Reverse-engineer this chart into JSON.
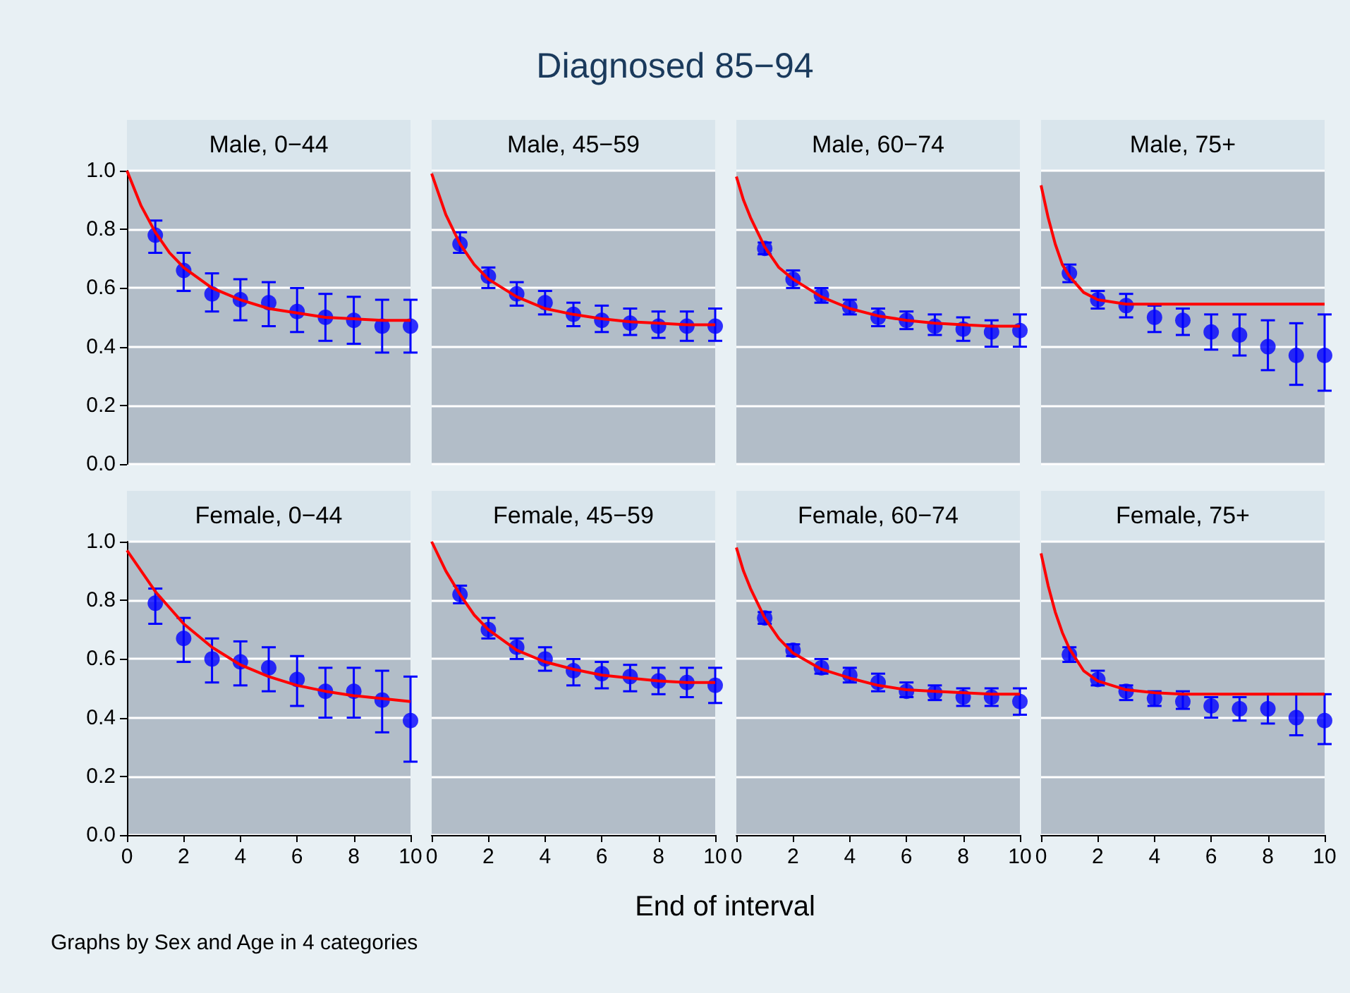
{
  "chart_data": [
    {
      "type": "other",
      "title": "Diagnosed 85−94"
    },
    {
      "type": "scatter",
      "title": "Male, 0−44",
      "xlim": [
        0,
        10
      ],
      "ylim": [
        0,
        1
      ],
      "xticks": [
        0,
        2,
        4,
        6,
        8,
        10
      ],
      "yticks": [
        {
          "value": 0,
          "label": "0.0"
        },
        {
          "value": 0.2,
          "label": "0.2"
        },
        {
          "value": 0.4,
          "label": "0.4"
        },
        {
          "value": 0.6,
          "label": "0.6"
        },
        {
          "value": 0.8,
          "label": "0.8"
        },
        {
          "value": 1,
          "label": "1.0"
        }
      ],
      "grid": "y",
      "tick_labels": "y",
      "series": [
        {
          "type": "scatter",
          "marker": "circle",
          "color": "#0000ff",
          "x": [
            1,
            2,
            3,
            4,
            5,
            6,
            7,
            8,
            9,
            10
          ],
          "values": [
            0.78,
            0.66,
            0.58,
            0.56,
            0.55,
            0.52,
            0.5,
            0.49,
            0.47,
            0.47
          ],
          "errors": [
            [
              0.72,
              0.83
            ],
            [
              0.59,
              0.72
            ],
            [
              0.52,
              0.65
            ],
            [
              0.49,
              0.63
            ],
            [
              0.47,
              0.62
            ],
            [
              0.45,
              0.6
            ],
            [
              0.42,
              0.58
            ],
            [
              0.41,
              0.57
            ],
            [
              0.38,
              0.56
            ],
            [
              0.38,
              0.56
            ]
          ]
        },
        {
          "type": "line",
          "color": "#ff0000",
          "x": [
            0,
            0.5,
            1,
            1.5,
            2,
            3,
            4,
            5,
            6,
            7,
            8,
            9,
            10
          ],
          "values": [
            1,
            0.88,
            0.79,
            0.72,
            0.67,
            0.6,
            0.56,
            0.53,
            0.515,
            0.5,
            0.495,
            0.49,
            0.49
          ]
        }
      ]
    },
    {
      "type": "scatter",
      "title": "Male, 45−59",
      "xlim": [
        0,
        10
      ],
      "ylim": [
        0,
        1
      ],
      "xticks": [
        0,
        2,
        4,
        6,
        8,
        10
      ],
      "yticks": [
        0,
        0.2,
        0.4,
        0.6,
        0.8,
        1
      ],
      "grid": "y",
      "tick_labels": false,
      "series": [
        {
          "type": "scatter",
          "marker": "circle",
          "color": "#0000ff",
          "x": [
            1,
            2,
            3,
            4,
            5,
            6,
            7,
            8,
            9,
            10
          ],
          "values": [
            0.75,
            0.64,
            0.58,
            0.55,
            0.51,
            0.49,
            0.48,
            0.47,
            0.47,
            0.47
          ],
          "errors": [
            [
              0.72,
              0.79
            ],
            [
              0.6,
              0.67
            ],
            [
              0.54,
              0.62
            ],
            [
              0.51,
              0.59
            ],
            [
              0.47,
              0.55
            ],
            [
              0.45,
              0.54
            ],
            [
              0.44,
              0.53
            ],
            [
              0.43,
              0.52
            ],
            [
              0.42,
              0.52
            ],
            [
              0.42,
              0.53
            ]
          ]
        },
        {
          "type": "line",
          "color": "#ff0000",
          "x": [
            0,
            0.5,
            1,
            1.5,
            2,
            3,
            4,
            5,
            6,
            7,
            8,
            9,
            10
          ],
          "values": [
            0.99,
            0.85,
            0.75,
            0.68,
            0.63,
            0.57,
            0.53,
            0.51,
            0.495,
            0.485,
            0.48,
            0.475,
            0.475
          ]
        }
      ]
    },
    {
      "type": "scatter",
      "title": "Male, 60−74",
      "xlim": [
        0,
        10
      ],
      "ylim": [
        0,
        1
      ],
      "xticks": [
        0,
        2,
        4,
        6,
        8,
        10
      ],
      "yticks": [
        0,
        0.2,
        0.4,
        0.6,
        0.8,
        1
      ],
      "grid": "y",
      "tick_labels": false,
      "series": [
        {
          "type": "scatter",
          "marker": "circle",
          "color": "#0000ff",
          "x": [
            1,
            2,
            3,
            4,
            5,
            6,
            7,
            8,
            9,
            10
          ],
          "values": [
            0.735,
            0.63,
            0.575,
            0.535,
            0.5,
            0.49,
            0.47,
            0.46,
            0.45,
            0.455
          ],
          "errors": [
            [
              0.715,
              0.755
            ],
            [
              0.6,
              0.66
            ],
            [
              0.55,
              0.6
            ],
            [
              0.51,
              0.56
            ],
            [
              0.47,
              0.53
            ],
            [
              0.46,
              0.52
            ],
            [
              0.44,
              0.51
            ],
            [
              0.42,
              0.5
            ],
            [
              0.4,
              0.49
            ],
            [
              0.4,
              0.51
            ]
          ]
        },
        {
          "type": "line",
          "color": "#ff0000",
          "x": [
            0,
            0.25,
            0.5,
            1,
            1.5,
            2,
            3,
            4,
            5,
            6,
            7,
            8,
            9,
            10
          ],
          "values": [
            0.98,
            0.9,
            0.84,
            0.74,
            0.67,
            0.63,
            0.57,
            0.53,
            0.505,
            0.49,
            0.48,
            0.475,
            0.47,
            0.47
          ]
        }
      ]
    },
    {
      "type": "scatter",
      "title": "Male, 75+",
      "xlim": [
        0,
        10
      ],
      "ylim": [
        0,
        1
      ],
      "xticks": [
        0,
        2,
        4,
        6,
        8,
        10
      ],
      "yticks": [
        0,
        0.2,
        0.4,
        0.6,
        0.8,
        1
      ],
      "grid": "y",
      "tick_labels": false,
      "series": [
        {
          "type": "scatter",
          "marker": "circle",
          "color": "#0000ff",
          "x": [
            1,
            2,
            3,
            4,
            5,
            6,
            7,
            8,
            9,
            10
          ],
          "values": [
            0.65,
            0.56,
            0.54,
            0.5,
            0.49,
            0.45,
            0.44,
            0.4,
            0.37,
            0.37
          ],
          "errors": [
            [
              0.62,
              0.68
            ],
            [
              0.53,
              0.59
            ],
            [
              0.5,
              0.58
            ],
            [
              0.45,
              0.54
            ],
            [
              0.44,
              0.53
            ],
            [
              0.39,
              0.51
            ],
            [
              0.37,
              0.51
            ],
            [
              0.32,
              0.49
            ],
            [
              0.27,
              0.48
            ],
            [
              0.25,
              0.51
            ]
          ]
        },
        {
          "type": "line",
          "color": "#ff0000",
          "x": [
            0,
            0.25,
            0.5,
            0.75,
            1,
            1.5,
            2,
            3,
            4,
            10
          ],
          "values": [
            0.95,
            0.84,
            0.75,
            0.68,
            0.64,
            0.585,
            0.56,
            0.545,
            0.545,
            0.545
          ]
        }
      ]
    },
    {
      "type": "scatter",
      "title": "Female, 0−44",
      "xlim": [
        0,
        10
      ],
      "ylim": [
        0,
        1
      ],
      "xticks": [
        0,
        2,
        4,
        6,
        8,
        10
      ],
      "yticks": [
        {
          "value": 0,
          "label": "0.0"
        },
        {
          "value": 0.2,
          "label": "0.2"
        },
        {
          "value": 0.4,
          "label": "0.4"
        },
        {
          "value": 0.6,
          "label": "0.6"
        },
        {
          "value": 0.8,
          "label": "0.8"
        },
        {
          "value": 1,
          "label": "1.0"
        }
      ],
      "grid": "y",
      "series": [
        {
          "type": "scatter",
          "marker": "circle",
          "color": "#0000ff",
          "x": [
            1,
            2,
            3,
            4,
            5,
            6,
            7,
            8,
            9,
            10
          ],
          "values": [
            0.79,
            0.67,
            0.6,
            0.59,
            0.57,
            0.53,
            0.49,
            0.49,
            0.46,
            0.39
          ],
          "errors": [
            [
              0.72,
              0.84
            ],
            [
              0.59,
              0.74
            ],
            [
              0.52,
              0.67
            ],
            [
              0.51,
              0.66
            ],
            [
              0.49,
              0.64
            ],
            [
              0.44,
              0.61
            ],
            [
              0.4,
              0.57
            ],
            [
              0.4,
              0.57
            ],
            [
              0.35,
              0.56
            ],
            [
              0.25,
              0.54
            ]
          ]
        },
        {
          "type": "line",
          "color": "#ff0000",
          "x": [
            0,
            1,
            2,
            3,
            4,
            5,
            6,
            7,
            8,
            9,
            10
          ],
          "values": [
            0.97,
            0.83,
            0.72,
            0.64,
            0.58,
            0.54,
            0.51,
            0.49,
            0.475,
            0.465,
            0.455
          ]
        }
      ]
    },
    {
      "type": "scatter",
      "title": "Female, 45−59",
      "xlim": [
        0,
        10
      ],
      "ylim": [
        0,
        1
      ],
      "xticks": [
        0,
        2,
        4,
        6,
        8,
        10
      ],
      "yticks": [
        0,
        0.2,
        0.4,
        0.6,
        0.8,
        1
      ],
      "grid": "y",
      "tick_labels": "x",
      "series": [
        {
          "type": "scatter",
          "marker": "circle",
          "color": "#0000ff",
          "x": [
            1,
            2,
            3,
            4,
            5,
            6,
            7,
            8,
            9,
            10
          ],
          "values": [
            0.82,
            0.7,
            0.64,
            0.6,
            0.56,
            0.55,
            0.54,
            0.525,
            0.52,
            0.51
          ],
          "errors": [
            [
              0.79,
              0.85
            ],
            [
              0.67,
              0.74
            ],
            [
              0.6,
              0.67
            ],
            [
              0.56,
              0.64
            ],
            [
              0.51,
              0.6
            ],
            [
              0.5,
              0.59
            ],
            [
              0.49,
              0.58
            ],
            [
              0.48,
              0.57
            ],
            [
              0.47,
              0.57
            ],
            [
              0.45,
              0.57
            ]
          ]
        },
        {
          "type": "line",
          "color": "#ff0000",
          "x": [
            0,
            0.5,
            1,
            1.5,
            2,
            3,
            4,
            5,
            6,
            7,
            8,
            9,
            10
          ],
          "values": [
            1,
            0.9,
            0.82,
            0.75,
            0.7,
            0.63,
            0.59,
            0.565,
            0.545,
            0.535,
            0.525,
            0.52,
            0.52
          ]
        }
      ]
    },
    {
      "type": "scatter",
      "title": "Female, 60−74",
      "xlim": [
        0,
        10
      ],
      "ylim": [
        0,
        1
      ],
      "xticks": [
        0,
        2,
        4,
        6,
        8,
        10
      ],
      "yticks": [
        0,
        0.2,
        0.4,
        0.6,
        0.8,
        1
      ],
      "grid": "y",
      "tick_labels": "x",
      "series": [
        {
          "type": "scatter",
          "marker": "circle",
          "color": "#0000ff",
          "x": [
            1,
            2,
            3,
            4,
            5,
            6,
            7,
            8,
            9,
            10
          ],
          "values": [
            0.74,
            0.63,
            0.57,
            0.545,
            0.52,
            0.49,
            0.485,
            0.47,
            0.47,
            0.455
          ],
          "errors": [
            [
              0.72,
              0.76
            ],
            [
              0.61,
              0.65
            ],
            [
              0.55,
              0.6
            ],
            [
              0.52,
              0.57
            ],
            [
              0.49,
              0.55
            ],
            [
              0.47,
              0.52
            ],
            [
              0.46,
              0.51
            ],
            [
              0.44,
              0.5
            ],
            [
              0.44,
              0.5
            ],
            [
              0.41,
              0.5
            ]
          ]
        },
        {
          "type": "line",
          "color": "#ff0000",
          "x": [
            0,
            0.25,
            0.5,
            1,
            1.5,
            2,
            3,
            4,
            5,
            6,
            7,
            8,
            9,
            10
          ],
          "values": [
            0.98,
            0.9,
            0.84,
            0.74,
            0.67,
            0.62,
            0.565,
            0.535,
            0.51,
            0.495,
            0.49,
            0.485,
            0.48,
            0.48
          ]
        }
      ]
    },
    {
      "type": "scatter",
      "title": "Female, 75+",
      "xlim": [
        0,
        10
      ],
      "ylim": [
        0,
        1
      ],
      "xticks": [
        0,
        2,
        4,
        6,
        8,
        10
      ],
      "yticks": [
        0,
        0.2,
        0.4,
        0.6,
        0.8,
        1
      ],
      "grid": "y",
      "tick_labels": "x",
      "series": [
        {
          "type": "scatter",
          "marker": "circle",
          "color": "#0000ff",
          "x": [
            1,
            2,
            3,
            4,
            5,
            6,
            7,
            8,
            9,
            10
          ],
          "values": [
            0.615,
            0.53,
            0.49,
            0.465,
            0.455,
            0.44,
            0.43,
            0.43,
            0.4,
            0.39
          ],
          "errors": [
            [
              0.59,
              0.64
            ],
            [
              0.51,
              0.56
            ],
            [
              0.46,
              0.51
            ],
            [
              0.44,
              0.49
            ],
            [
              0.43,
              0.49
            ],
            [
              0.4,
              0.47
            ],
            [
              0.39,
              0.47
            ],
            [
              0.38,
              0.48
            ],
            [
              0.34,
              0.48
            ],
            [
              0.31,
              0.48
            ]
          ]
        },
        {
          "type": "line",
          "color": "#ff0000",
          "x": [
            0,
            0.25,
            0.5,
            0.75,
            1,
            1.5,
            2,
            3,
            4,
            5,
            10
          ],
          "values": [
            0.96,
            0.85,
            0.76,
            0.69,
            0.635,
            0.56,
            0.525,
            0.495,
            0.485,
            0.48,
            0.48
          ]
        }
      ]
    },
    {
      "type": "other",
      "xlabel": "End of interval",
      "annotations": [
        "Graphs by Sex and Age in 4 categories"
      ]
    }
  ]
}
